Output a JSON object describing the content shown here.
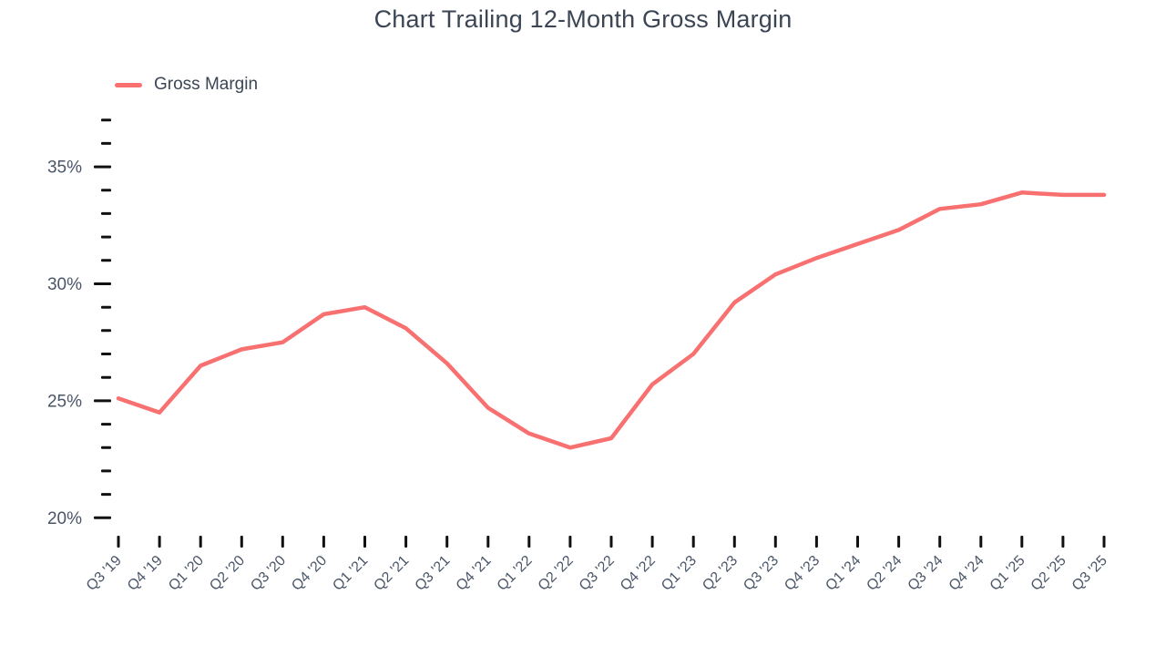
{
  "title": "Chart Trailing 12-Month Gross Margin",
  "legend": {
    "label": "Gross Margin",
    "color": "#F87070"
  },
  "colors": {
    "line": "#F87070",
    "title_text": "#3B4554",
    "axis_label_text": "#4A5568",
    "tick_mark": "#111111",
    "background": "#FFFFFF"
  },
  "y_axis": {
    "major": [
      {
        "value": 35,
        "label": "35%"
      },
      {
        "value": 30,
        "label": "30%"
      },
      {
        "value": 25,
        "label": "25%"
      },
      {
        "value": 20,
        "label": "20%"
      }
    ],
    "minor_from": 20,
    "minor_to": 37,
    "minor_step": 1
  },
  "chart_data": {
    "type": "line",
    "title": "Chart Trailing 12-Month Gross Margin",
    "categories": [
      "Q3 '19",
      "Q4 '19",
      "Q1 '20",
      "Q2 '20",
      "Q3 '20",
      "Q4 '20",
      "Q1 '21",
      "Q2 '21",
      "Q3 '21",
      "Q4 '21",
      "Q1 '22",
      "Q2 '22",
      "Q3 '22",
      "Q4 '22",
      "Q1 '23",
      "Q2 '23",
      "Q3 '23",
      "Q4 '23",
      "Q1 '24",
      "Q2 '24",
      "Q3 '24",
      "Q4 '24",
      "Q1 '25",
      "Q2 '25",
      "Q3 '25"
    ],
    "series": [
      {
        "name": "Gross Margin",
        "color": "#F87070",
        "values": [
          25.1,
          24.5,
          26.5,
          27.2,
          27.5,
          28.7,
          29.0,
          28.1,
          26.6,
          24.7,
          23.6,
          23.0,
          23.4,
          25.7,
          27.0,
          29.2,
          30.4,
          31.1,
          31.7,
          32.3,
          33.2,
          33.4,
          33.9,
          33.8,
          33.8
        ]
      }
    ],
    "xlabel": "",
    "ylabel": "",
    "ylim": [
      20,
      37
    ],
    "y_tick_format": "percent",
    "grid": false,
    "legend_position": "top-left"
  }
}
